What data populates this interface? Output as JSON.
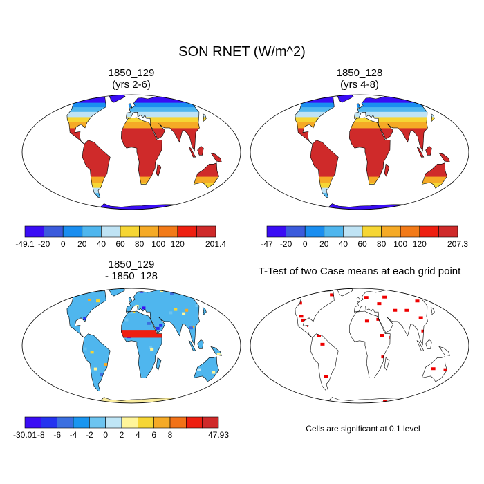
{
  "title": "SON RNET (W/m^2)",
  "panels": [
    {
      "id": "p1",
      "line1": "1850_129",
      "line2": "(yrs 2-6)",
      "colorbar": {
        "labels": [
          "-49.1",
          "-20",
          "0",
          "20",
          "40",
          "60",
          "80",
          "100",
          "120",
          "201.4"
        ],
        "colors": [
          "#3a0df5",
          "#3b5bdc",
          "#1a8ef0",
          "#4fb6ee",
          "#bfe3f4",
          "#f6d634",
          "#f5aa26",
          "#f27a18",
          "#ee1f10",
          "#cf2a2a"
        ]
      }
    },
    {
      "id": "p2",
      "line1": "1850_128",
      "line2": "(yrs 4-8)",
      "colorbar": {
        "labels": [
          "-47",
          "-20",
          "0",
          "20",
          "40",
          "60",
          "80",
          "100",
          "120",
          "207.3"
        ],
        "colors": [
          "#3a0df5",
          "#3b5bdc",
          "#1a8ef0",
          "#4fb6ee",
          "#bfe3f4",
          "#f6d634",
          "#f5aa26",
          "#f27a18",
          "#ee1f10",
          "#cf2a2a"
        ]
      }
    },
    {
      "id": "p3",
      "line1": "1850_129",
      "line2": "- 1850_128",
      "colorbar": {
        "labels": [
          "-30.01",
          "-8",
          "-6",
          "-4",
          "-2",
          "0",
          "2",
          "4",
          "6",
          "8",
          "47.93"
        ],
        "colors": [
          "#3a0df5",
          "#2433f0",
          "#3b6fe0",
          "#1a96f0",
          "#6cc4f0",
          "#bfe6f6",
          "#fff59a",
          "#f6d634",
          "#f5aa26",
          "#f27218",
          "#ee1f10",
          "#cf2a2a"
        ]
      }
    },
    {
      "id": "p4",
      "line1": "T-Test of two Case means at each grid point",
      "line2": ""
    }
  ],
  "footnote": "Cells are significant at 0.1 level",
  "colors": {
    "land_outline": "#000000",
    "significance": "#ee0000",
    "antarctic_diff": "#fbeea0"
  }
}
